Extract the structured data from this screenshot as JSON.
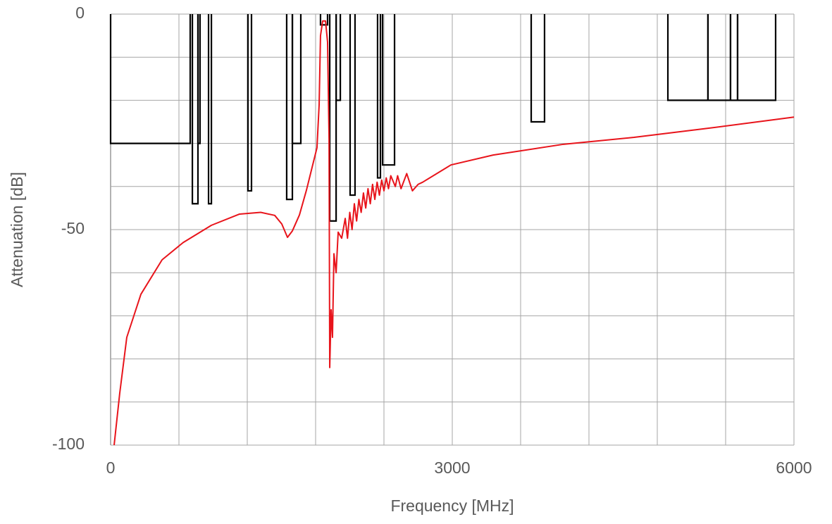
{
  "chart_data": {
    "type": "line",
    "xlabel": "Frequency [MHz]",
    "ylabel": "Attenuation  [dB]",
    "xlim": [
      0,
      6000
    ],
    "ylim": [
      -100,
      0
    ],
    "xticks": [
      0,
      3000,
      6000
    ],
    "yticks": [
      -100,
      -50,
      0
    ],
    "xgrid": [
      0,
      600,
      1200,
      1800,
      2400,
      3000,
      3600,
      4200,
      4800,
      5400,
      6000
    ],
    "ygrid": [
      -100,
      -90,
      -80,
      -70,
      -60,
      -50,
      -40,
      -30,
      -20,
      -10,
      0
    ],
    "grid": true,
    "series": [
      {
        "color": "#e8141b",
        "x": [
          31,
          80,
          142,
          266,
          452,
          637,
          885,
          1132,
          1318,
          1441,
          1503,
          1553,
          1596,
          1658,
          1720,
          1781,
          1812,
          1831,
          1843,
          1862,
          1887,
          1905,
          1918,
          1924,
          1936,
          1948,
          1961,
          1980,
          1998,
          2029,
          2060,
          2080,
          2100,
          2120,
          2140,
          2160,
          2180,
          2200,
          2220,
          2240,
          2260,
          2280,
          2300,
          2320,
          2340,
          2360,
          2380,
          2400,
          2420,
          2440,
          2460,
          2500,
          2520,
          2550,
          2600,
          2650,
          2700,
          2740,
          2988,
          3359,
          3977,
          4596,
          5214,
          6000
        ],
        "values": [
          -100,
          -88,
          -75,
          -65,
          -57,
          -53,
          -49,
          -46.4,
          -46,
          -46.7,
          -48.7,
          -51.8,
          -50.3,
          -46.6,
          -40.8,
          -34.3,
          -31,
          -21,
          -5,
          -1.6,
          -1.6,
          -6.5,
          -29,
          -82,
          -68.6,
          -75,
          -55.6,
          -60,
          -50.6,
          -52,
          -47.4,
          -52,
          -46,
          -50,
          -44,
          -48,
          -43,
          -46,
          -41.5,
          -45,
          -40.5,
          -44,
          -39.5,
          -43,
          -39,
          -42,
          -38.5,
          -41,
          -38,
          -40.5,
          -37.5,
          -40,
          -37.5,
          -40.5,
          -37,
          -41,
          -39.5,
          -39,
          -35,
          -32.7,
          -30.2,
          -28.6,
          -26.6,
          -23.9
        ]
      }
    ],
    "mask_color": "#000000",
    "mask": [
      {
        "from": 0,
        "to": 699,
        "level": -30
      },
      {
        "from": 718,
        "to": 767,
        "level": -44
      },
      {
        "from": 767,
        "to": 785,
        "level": -30
      },
      {
        "from": 860,
        "to": 885,
        "level": -44
      },
      {
        "from": 1206,
        "to": 1237,
        "level": -41
      },
      {
        "from": 1546,
        "to": 1596,
        "level": -43
      },
      {
        "from": 1596,
        "to": 1670,
        "level": -30
      },
      {
        "from": 1843,
        "to": 1905,
        "level": -2.5
      },
      {
        "from": 1924,
        "to": 1980,
        "level": -48
      },
      {
        "from": 1980,
        "to": 2017,
        "level": -20
      },
      {
        "from": 2103,
        "to": 2146,
        "level": -42
      },
      {
        "from": 2344,
        "to": 2369,
        "level": -38
      },
      {
        "from": 2388,
        "to": 2493,
        "level": -35
      },
      {
        "from": 3693,
        "to": 3810,
        "level": -25
      },
      {
        "from": 4893,
        "to": 5245,
        "level": -20
      },
      {
        "from": 5245,
        "to": 5443,
        "level": -20
      },
      {
        "from": 5443,
        "to": 5505,
        "level": -20
      },
      {
        "from": 5505,
        "to": 5839,
        "level": -20
      }
    ]
  }
}
